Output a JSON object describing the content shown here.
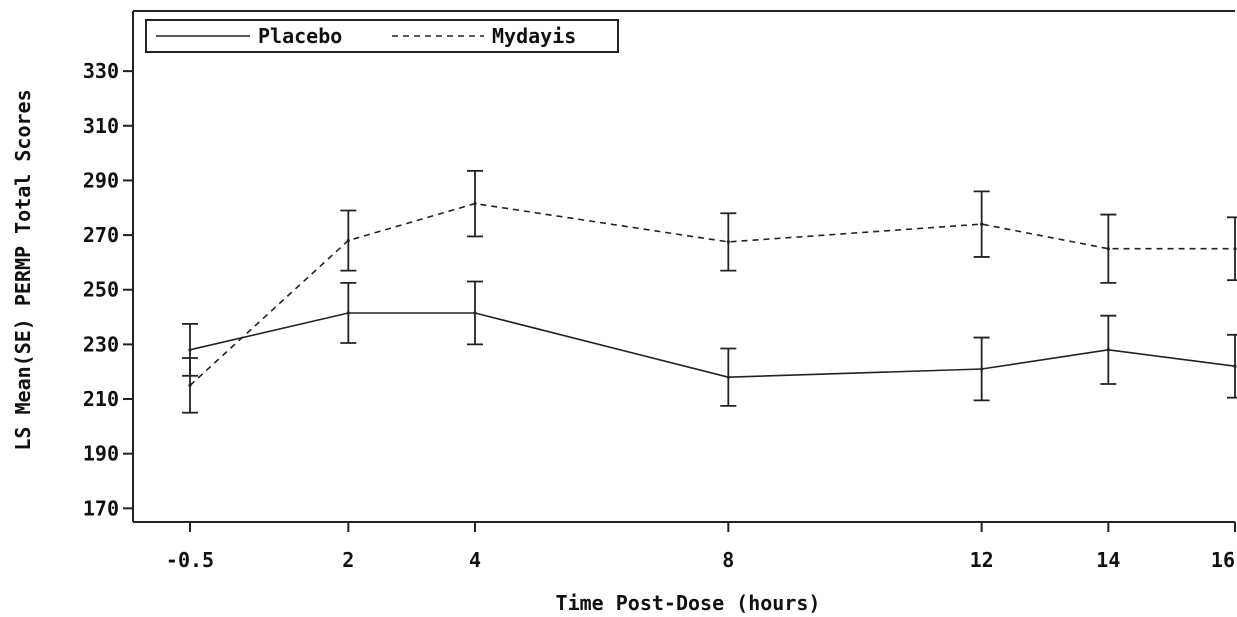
{
  "chart_data": {
    "type": "line",
    "xlabel": "Time Post-Dose (hours)",
    "ylabel": "LS Mean(SE) PERMP Total Scores",
    "xlim": [
      -1.4,
      16
    ],
    "ylim": [
      165,
      352
    ],
    "x_ticks": [
      -0.5,
      2,
      4,
      8,
      12,
      14,
      16
    ],
    "x_tick_labels": [
      "-0.5",
      "2",
      "4",
      "8",
      "12",
      "14",
      "16"
    ],
    "y_ticks": [
      170,
      190,
      210,
      230,
      250,
      270,
      290,
      310,
      330
    ],
    "y_tick_labels": [
      "170",
      "190",
      "210",
      "230",
      "250",
      "270",
      "290",
      "310",
      "330"
    ],
    "grid": false,
    "legend": "top-left",
    "series": [
      {
        "name": "Placebo",
        "style": "solid",
        "color": "#222222",
        "x": [
          -0.5,
          2,
          4,
          8,
          12,
          14,
          16
        ],
        "y": [
          228,
          241.5,
          241.5,
          218,
          221,
          228,
          222
        ],
        "se": [
          9.5,
          11,
          11.5,
          10.5,
          11.5,
          12.5,
          11.5
        ]
      },
      {
        "name": "Mydayis",
        "style": "dashed",
        "color": "#222222",
        "x": [
          -0.5,
          2,
          4,
          8,
          12,
          14,
          16
        ],
        "y": [
          215,
          268,
          281.5,
          267.5,
          274,
          265,
          265
        ],
        "se": [
          10,
          11,
          12,
          10.5,
          12,
          12.5,
          11.5
        ]
      }
    ]
  }
}
